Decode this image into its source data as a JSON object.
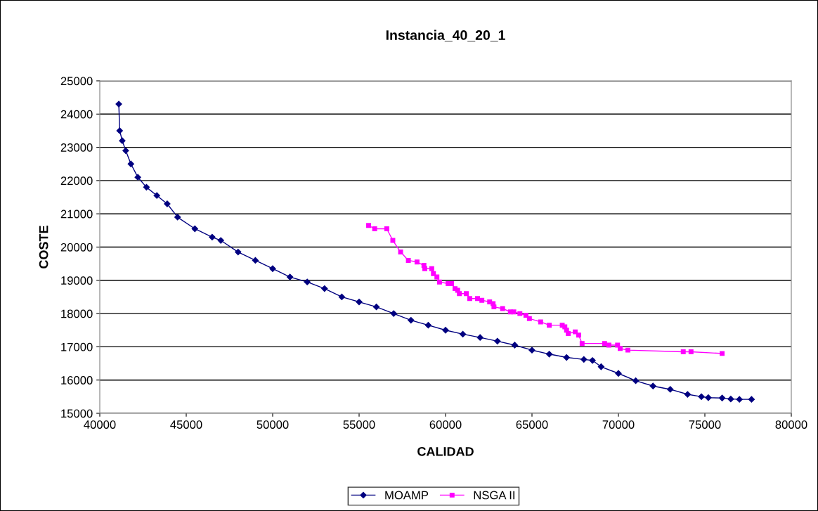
{
  "chart_data": {
    "type": "line",
    "title": "Instancia_40_20_1",
    "xlabel": "CALIDAD",
    "ylabel": "COSTE",
    "xlim": [
      40000,
      80000
    ],
    "xticks": [
      40000,
      45000,
      50000,
      55000,
      60000,
      65000,
      70000,
      75000,
      80000
    ],
    "ylim": [
      15000,
      25000
    ],
    "yticks": [
      15000,
      16000,
      17000,
      18000,
      19000,
      20000,
      21000,
      22000,
      23000,
      24000,
      25000
    ],
    "grid": "y",
    "legend": "bottom",
    "line_style": "solid",
    "series": [
      {
        "name": "MOAMP",
        "color": "#000080",
        "marker": "diamond",
        "x": [
          41100,
          41150,
          41300,
          41500,
          41800,
          42200,
          42700,
          43300,
          43900,
          44500,
          45500,
          46500,
          47000,
          48000,
          49000,
          50000,
          51000,
          52000,
          53000,
          54000,
          55000,
          56000,
          57000,
          58000,
          59000,
          60000,
          61000,
          62000,
          63000,
          64000,
          65000,
          66000,
          67000,
          68000,
          68500,
          69000,
          70000,
          71000,
          72000,
          73000,
          74000,
          74800,
          75200,
          76000,
          76500,
          77000,
          77700
        ],
        "values": [
          24300,
          23500,
          23200,
          22900,
          22500,
          22100,
          21800,
          21550,
          21300,
          20900,
          20550,
          20300,
          20200,
          19850,
          19600,
          19350,
          19100,
          18950,
          18750,
          18500,
          18350,
          18200,
          18000,
          17800,
          17650,
          17500,
          17380,
          17280,
          17170,
          17050,
          16900,
          16780,
          16680,
          16620,
          16590,
          16400,
          16200,
          15980,
          15820,
          15720,
          15570,
          15500,
          15470,
          15460,
          15430,
          15420,
          15420
        ]
      },
      {
        "name": "NSGA II",
        "color": "#ff00ff",
        "marker": "square",
        "x": [
          55550,
          55900,
          56600,
          56950,
          57400,
          57850,
          58350,
          58750,
          58800,
          59200,
          59300,
          59500,
          59650,
          60150,
          60350,
          60550,
          60700,
          60800,
          61200,
          61400,
          61850,
          62100,
          62550,
          62750,
          62800,
          63300,
          63750,
          63950,
          64300,
          64650,
          64850,
          65500,
          66000,
          66750,
          66900,
          67000,
          67100,
          67500,
          67700,
          67900,
          69200,
          69450,
          69950,
          70100,
          70550,
          73750,
          74200,
          76000
        ],
        "values": [
          20650,
          20550,
          20550,
          20200,
          19850,
          19600,
          19550,
          19450,
          19350,
          19350,
          19200,
          19100,
          18950,
          18900,
          18900,
          18750,
          18700,
          18600,
          18600,
          18450,
          18450,
          18400,
          18350,
          18300,
          18200,
          18150,
          18050,
          18050,
          18000,
          17950,
          17850,
          17750,
          17650,
          17650,
          17600,
          17500,
          17400,
          17450,
          17350,
          17100,
          17100,
          17050,
          17050,
          16950,
          16900,
          16850,
          16850,
          16800
        ]
      }
    ]
  }
}
